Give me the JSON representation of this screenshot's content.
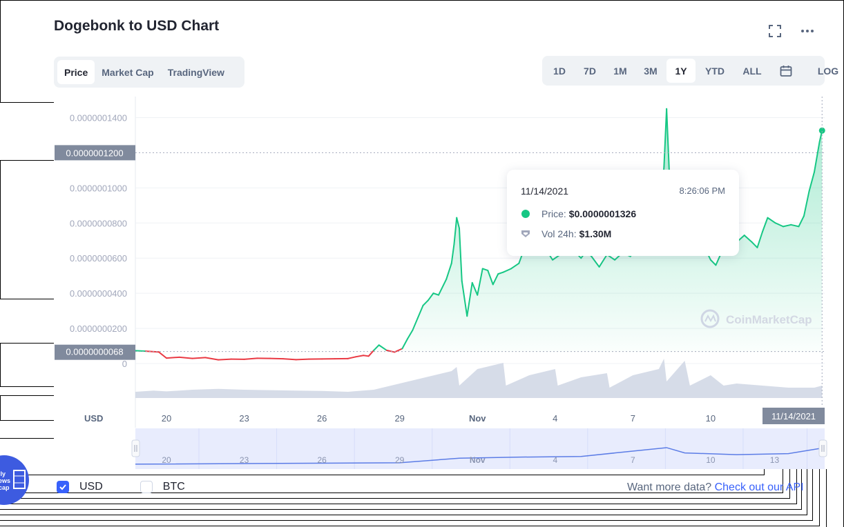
{
  "header": {
    "title": "Dogebonk to USD Chart"
  },
  "tabs": [
    {
      "label": "Price",
      "active": true
    },
    {
      "label": "Market Cap",
      "active": false
    },
    {
      "label": "TradingView",
      "active": false
    }
  ],
  "ranges": [
    {
      "label": "1D",
      "active": false
    },
    {
      "label": "7D",
      "active": false
    },
    {
      "label": "1M",
      "active": false
    },
    {
      "label": "3M",
      "active": false
    },
    {
      "label": "1Y",
      "active": true
    },
    {
      "label": "YTD",
      "active": false
    },
    {
      "label": "ALL",
      "active": false
    }
  ],
  "log_label": "LOG",
  "icons": {
    "fullscreen": "expand-icon",
    "more": "more-dots-icon",
    "calendar": "calendar-icon"
  },
  "tooltip": {
    "date": "11/14/2021",
    "time": "8:26:06 PM",
    "price_label": "Price:",
    "price_value": "$0.0000001326",
    "vol_label": "Vol 24h:",
    "vol_value": "$1.30M"
  },
  "footer": {
    "usd_label": "USD",
    "btc_label": "BTC",
    "usd_checked": true,
    "btc_checked": false,
    "more_data_text": "Want more data?",
    "more_data_link": "Check out our API"
  },
  "badge": {
    "text_lines": [
      "ily",
      "ews",
      "cap"
    ]
  },
  "watermark": "CoinMarketCap",
  "colors": {
    "up": "#16c784",
    "down": "#ea3943",
    "volume": "#cfd6e4",
    "accent": "#3861fb",
    "navigator_line": "#5b7ce6"
  },
  "chart_data": {
    "type": "line",
    "ylabel": "",
    "currency_label": "USD",
    "y_ticks": [
      "0.0000001400",
      "0.0000001000",
      "0.0000000800",
      "0.0000000600",
      "0.0000000400",
      "0.0000000200",
      "0"
    ],
    "y_tick_values": [
      1.4e-07,
      1e-07,
      8e-08,
      6e-08,
      4e-08,
      2e-08,
      0
    ],
    "ylim": [
      0,
      1.5e-07
    ],
    "x_ticks": [
      "20",
      "23",
      "26",
      "29",
      "Nov",
      "4",
      "7",
      "10"
    ],
    "x_tick_days": [
      0,
      3,
      6,
      9,
      12,
      15,
      18,
      21
    ],
    "navigator_ticks": [
      "20",
      "23",
      "26",
      "29",
      "Nov",
      "4",
      "7",
      "10",
      "13"
    ],
    "navigator_tick_days": [
      0,
      3,
      6,
      9,
      12,
      15,
      18,
      21,
      24
    ],
    "x_range_days": [
      -1.2,
      25.4
    ],
    "reference_label": "0.0000000068",
    "reference_value": 6.8e-09,
    "hover_label": "0.0000001200",
    "hover_value": 1.2e-07,
    "cursor_date_label": "11/14/2021",
    "cursor_day": 25.3,
    "grid": true,
    "legend": "none",
    "series": [
      {
        "values": [
          [
            -1.2,
            7.3e-09
          ],
          [
            -0.8,
            7e-09
          ],
          [
            -0.3,
            6.6e-09
          ],
          [
            0.0,
            3.1e-09
          ],
          [
            0.5,
            3.6e-09
          ],
          [
            1.0,
            2.9e-09
          ],
          [
            1.5,
            3.4e-09
          ],
          [
            2.0,
            2.1e-09
          ],
          [
            2.5,
            2.5e-09
          ],
          [
            3.0,
            2.4e-09
          ],
          [
            3.5,
            3e-09
          ],
          [
            4.0,
            2.9e-09
          ],
          [
            4.5,
            2.7e-09
          ],
          [
            5.0,
            2.2e-09
          ],
          [
            5.5,
            2.5e-09
          ],
          [
            6.0,
            2.6e-09
          ],
          [
            6.5,
            2.7e-09
          ],
          [
            7.0,
            2.8e-09
          ],
          [
            7.3,
            3.8e-09
          ],
          [
            7.6,
            4.6e-09
          ],
          [
            7.8,
            4.2e-09
          ],
          [
            8.0,
            7.5e-09
          ],
          [
            8.2,
            1.05e-08
          ],
          [
            8.5,
            7.5e-09
          ],
          [
            8.8,
            6.5e-09
          ],
          [
            9.1,
            8.5e-09
          ],
          [
            9.3,
            1.4e-08
          ],
          [
            9.5,
            1.9e-08
          ],
          [
            9.7,
            2.6e-08
          ],
          [
            9.9,
            3.3e-08
          ],
          [
            10.1,
            3.6e-08
          ],
          [
            10.3,
            4e-08
          ],
          [
            10.5,
            3.9e-08
          ],
          [
            10.8,
            4.8e-08
          ],
          [
            11.0,
            5.7e-08
          ],
          [
            11.1,
            6.8e-08
          ],
          [
            11.2,
            8.3e-08
          ],
          [
            11.3,
            7.7e-08
          ],
          [
            11.4,
            4.7e-08
          ],
          [
            11.5,
            3.7e-08
          ],
          [
            11.6,
            2.7e-08
          ],
          [
            11.8,
            4.6e-08
          ],
          [
            12.0,
            3.9e-08
          ],
          [
            12.2,
            5.4e-08
          ],
          [
            12.4,
            5.3e-08
          ],
          [
            12.6,
            4.5e-08
          ],
          [
            12.8,
            5.1e-08
          ],
          [
            13.0,
            5.2e-08
          ],
          [
            13.3,
            5.4e-08
          ],
          [
            13.6,
            5.7e-08
          ],
          [
            13.8,
            6.5e-08
          ],
          [
            14.0,
            6.9e-08
          ],
          [
            14.3,
            7.1e-08
          ],
          [
            14.6,
            6.6e-08
          ],
          [
            14.9,
            5.9e-08
          ],
          [
            15.2,
            6.2e-08
          ],
          [
            15.5,
            6.6e-08
          ],
          [
            15.8,
            6.3e-08
          ],
          [
            16.0,
            6e-08
          ],
          [
            16.2,
            6.4e-08
          ],
          [
            16.4,
            6.1e-08
          ],
          [
            16.7,
            5.5e-08
          ],
          [
            17.0,
            6.2e-08
          ],
          [
            17.3,
            5.9e-08
          ],
          [
            17.6,
            6.3e-08
          ],
          [
            17.9,
            6.1e-08
          ],
          [
            18.2,
            6.6e-08
          ],
          [
            18.5,
            6.9e-08
          ],
          [
            18.8,
            7.1e-08
          ],
          [
            19.0,
            7.2e-08
          ],
          [
            19.2,
            1.12e-07
          ],
          [
            19.3,
            1.45e-07
          ],
          [
            19.4,
            1.1e-07
          ],
          [
            19.5,
            1.02e-07
          ],
          [
            19.6,
            1.05e-07
          ],
          [
            19.8,
            9.6e-08
          ],
          [
            20.0,
            9.3e-08
          ],
          [
            20.2,
            7.8e-08
          ],
          [
            20.5,
            7.4e-08
          ],
          [
            20.8,
            6.5e-08
          ],
          [
            21.0,
            5.9e-08
          ],
          [
            21.2,
            5.6e-08
          ],
          [
            21.5,
            6.6e-08
          ],
          [
            21.8,
            6.6e-08
          ],
          [
            22.0,
            6.9e-08
          ],
          [
            22.3,
            7.3e-08
          ],
          [
            22.6,
            6.9e-08
          ],
          [
            22.8,
            6.6e-08
          ],
          [
            23.0,
            7.5e-08
          ],
          [
            23.2,
            8.3e-08
          ],
          [
            23.5,
            8e-08
          ],
          [
            23.8,
            7.8e-08
          ],
          [
            24.1,
            7.9e-08
          ],
          [
            24.4,
            7.8e-08
          ],
          [
            24.6,
            8.4e-08
          ],
          [
            24.8,
            9.8e-08
          ],
          [
            25.0,
            1.09e-07
          ],
          [
            25.2,
            1.26e-07
          ],
          [
            25.3,
            1.326e-07
          ]
        ]
      }
    ],
    "volume": [
      [
        -1.2,
        0.15
      ],
      [
        -0.5,
        0.18
      ],
      [
        0.0,
        0.16
      ],
      [
        1.0,
        0.2
      ],
      [
        2.0,
        0.22
      ],
      [
        3.0,
        0.2
      ],
      [
        4.0,
        0.19
      ],
      [
        5.0,
        0.18
      ],
      [
        6.0,
        0.17
      ],
      [
        7.0,
        0.15
      ],
      [
        8.0,
        0.2
      ],
      [
        9.0,
        0.35
      ],
      [
        10.0,
        0.5
      ],
      [
        11.0,
        0.65
      ],
      [
        11.2,
        0.75
      ],
      [
        11.3,
        0.3
      ],
      [
        12.0,
        0.7
      ],
      [
        13.0,
        0.85
      ],
      [
        13.1,
        0.3
      ],
      [
        14.0,
        0.55
      ],
      [
        15.0,
        0.7
      ],
      [
        15.1,
        0.3
      ],
      [
        16.0,
        0.5
      ],
      [
        17.0,
        0.6
      ],
      [
        17.1,
        0.25
      ],
      [
        18.0,
        0.55
      ],
      [
        19.0,
        0.7
      ],
      [
        19.2,
        0.95
      ],
      [
        19.3,
        0.4
      ],
      [
        20.0,
        0.9
      ],
      [
        20.2,
        0.3
      ],
      [
        21.0,
        0.55
      ],
      [
        21.5,
        0.3
      ],
      [
        22.0,
        0.35
      ],
      [
        23.0,
        0.3
      ],
      [
        24.0,
        0.25
      ],
      [
        25.0,
        0.25
      ],
      [
        25.3,
        0.3
      ]
    ],
    "navigator_series": [
      [
        -1.2,
        0.08
      ],
      [
        9.0,
        0.12
      ],
      [
        11.3,
        0.25
      ],
      [
        13.5,
        0.28
      ],
      [
        16.0,
        0.3
      ],
      [
        19.3,
        0.55
      ],
      [
        20.0,
        0.4
      ],
      [
        22.0,
        0.35
      ],
      [
        24.0,
        0.38
      ],
      [
        25.4,
        0.55
      ]
    ]
  }
}
